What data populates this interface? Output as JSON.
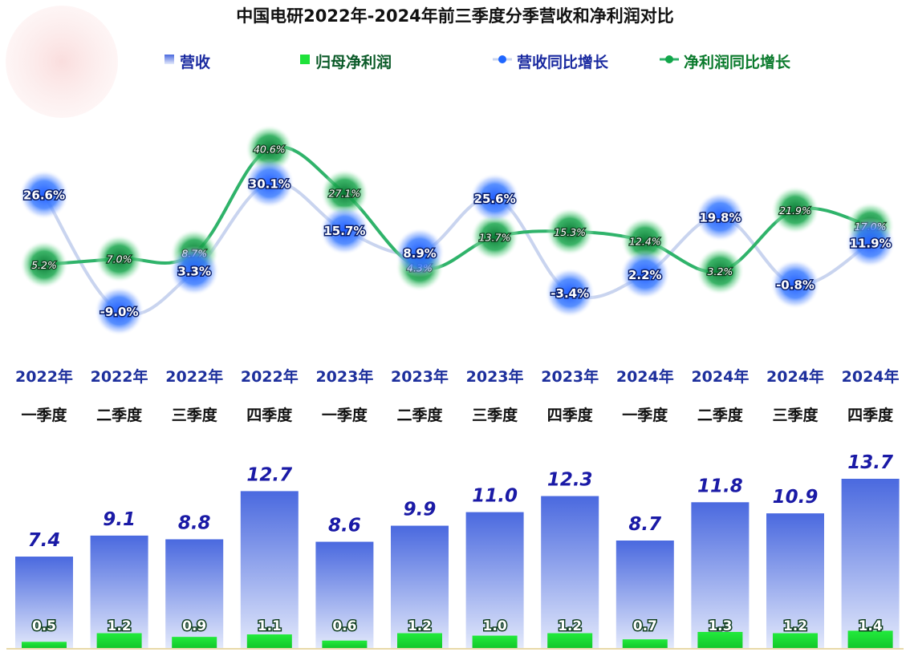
{
  "colors": {
    "revenue_bar": "#4f6fe0",
    "net_bar": "#1fe23a",
    "revenue_yoy_line": "#c9d4ef",
    "revenue_yoy_glow": "#1f66ff",
    "net_yoy_line": "#2fb36a",
    "net_yoy_glow": "#12a64a"
  },
  "chart_data": {
    "type": "bar",
    "title": "中国电研2022年-2024年前三季度分季营收和净利润对比",
    "legend": {
      "placement": "top",
      "items": [
        {
          "label": "营收",
          "icon": "blue-square-icon"
        },
        {
          "label": "归母净利润",
          "icon": "green-square-icon"
        },
        {
          "label": "营收同比增长",
          "icon": "blue-dot-line-icon"
        },
        {
          "label": "净利润同比增长",
          "icon": "green-dot-line-icon"
        }
      ]
    },
    "categories": [
      [
        "2022年",
        "一季度"
      ],
      [
        "2022年",
        "二季度"
      ],
      [
        "2022年",
        "三季度"
      ],
      [
        "2022年",
        "四季度"
      ],
      [
        "2023年",
        "一季度"
      ],
      [
        "2023年",
        "二季度"
      ],
      [
        "2023年",
        "三季度"
      ],
      [
        "2023年",
        "四季度"
      ],
      [
        "2024年",
        "一季度"
      ],
      [
        "2024年",
        "二季度"
      ],
      [
        "2024年",
        "三季度"
      ],
      [
        "2024年",
        "四季度"
      ]
    ],
    "series": [
      {
        "name": "营收",
        "type": "bar",
        "values": [
          7.4,
          9.1,
          8.8,
          12.7,
          8.6,
          9.9,
          11.0,
          12.3,
          8.7,
          11.8,
          10.9,
          13.7
        ],
        "labels": [
          "7.4",
          "9.1",
          "8.8",
          "12.7",
          "8.6",
          "9.9",
          "11.0",
          "12.3",
          "8.7",
          "11.8",
          "10.9",
          "13.7"
        ]
      },
      {
        "name": "归母净利润",
        "type": "bar",
        "values": [
          0.5,
          1.2,
          0.9,
          1.1,
          0.6,
          1.2,
          1.0,
          1.2,
          0.7,
          1.3,
          1.2,
          1.4
        ],
        "labels": [
          "0.5",
          "1.2",
          "0.9",
          "1.1",
          "0.6",
          "1.2",
          "1.0",
          "1.2",
          "0.7",
          "1.3",
          "1.2",
          "1.4"
        ]
      },
      {
        "name": "营收同比增长",
        "type": "line",
        "values": [
          26.6,
          -9.0,
          3.3,
          30.1,
          15.7,
          8.9,
          25.6,
          -3.4,
          2.2,
          19.8,
          -0.8,
          11.9
        ],
        "labels": [
          "26.6%",
          "-9.0%",
          "3.3%",
          "30.1%",
          "15.7%",
          "8.9%",
          "25.6%",
          "-3.4%",
          "2.2%",
          "19.8%",
          "-0.8%",
          "11.9%"
        ]
      },
      {
        "name": "净利润同比增长",
        "type": "line",
        "values": [
          5.2,
          7.0,
          8.7,
          40.6,
          27.1,
          4.3,
          13.7,
          15.3,
          12.4,
          3.2,
          21.9,
          17.0
        ],
        "labels": [
          "5.2%",
          "7.0%",
          "8.7%",
          "40.6%",
          "27.1%",
          "4.3%",
          "13.7%",
          "15.3%",
          "12.4%",
          "3.2%",
          "21.9%",
          "17.0%"
        ]
      }
    ],
    "ylim_bars": [
      0,
      14
    ],
    "ylim_lines": [
      -12,
      42
    ],
    "grid": false
  }
}
